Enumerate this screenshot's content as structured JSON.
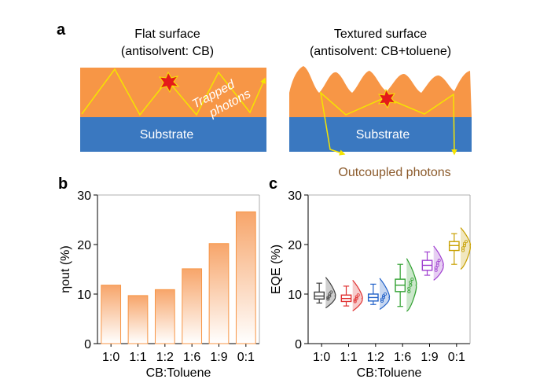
{
  "panels": {
    "a": {
      "label": "a",
      "left": {
        "title": "Flat surface",
        "subtitle": "(antisolvent: CB)",
        "substrate_label": "Substrate",
        "annotation": "Trapped\nphotons"
      },
      "right": {
        "title": "Textured  surface",
        "subtitle": "(antisolvent: CB+toluene)",
        "substrate_label": "Substrate",
        "annotation": "Outcoupled photons"
      },
      "colors": {
        "perovskite": "#f79646",
        "substrate": "#3a78c0",
        "ray": "#f5e400",
        "annotation_text": "#8b5a2b"
      }
    },
    "b": {
      "label": "b"
    },
    "c": {
      "label": "c"
    }
  },
  "chart_data": [
    {
      "panel": "b",
      "type": "bar",
      "categories": [
        "1:0",
        "1:1",
        "1:2",
        "1:6",
        "1:9",
        "0:1"
      ],
      "values": [
        11.8,
        9.7,
        10.9,
        15.1,
        20.2,
        26.6
      ],
      "xlabel": "CB:Toluene",
      "ylabel": "ηout (%)",
      "ylim": [
        0,
        30
      ],
      "yticks": [
        0,
        10,
        20,
        30
      ],
      "bar_fill": "gradient orange-to-white",
      "bar_color": "#f79646"
    },
    {
      "panel": "c",
      "type": "box",
      "categories": [
        "1:0",
        "1:1",
        "1:2",
        "1:6",
        "1:9",
        "0:1"
      ],
      "series": [
        {
          "category": "1:0",
          "min": 8.2,
          "q1": 9.0,
          "median": 9.6,
          "q3": 10.4,
          "max": 12.2,
          "color": "#404040"
        },
        {
          "category": "1:1",
          "min": 7.6,
          "q1": 8.5,
          "median": 9.1,
          "q3": 9.8,
          "max": 11.6,
          "color": "#e03030"
        },
        {
          "category": "1:2",
          "min": 7.9,
          "q1": 8.6,
          "median": 9.3,
          "q3": 10.0,
          "max": 12.0,
          "color": "#2060c8"
        },
        {
          "category": "1:6",
          "min": 7.5,
          "q1": 10.5,
          "median": 11.8,
          "q3": 13.0,
          "max": 16.0,
          "color": "#30a030"
        },
        {
          "category": "1:9",
          "min": 13.8,
          "q1": 14.8,
          "median": 15.8,
          "q3": 16.8,
          "max": 18.5,
          "color": "#a040d0"
        },
        {
          "category": "0:1",
          "min": 16.0,
          "q1": 18.8,
          "median": 19.8,
          "q3": 20.6,
          "max": 22.2,
          "color": "#c8a000"
        }
      ],
      "xlabel": "CB:Toluene",
      "ylabel": "EQE (%)",
      "ylim": [
        0,
        30
      ],
      "yticks": [
        0,
        10,
        20,
        30
      ]
    }
  ]
}
